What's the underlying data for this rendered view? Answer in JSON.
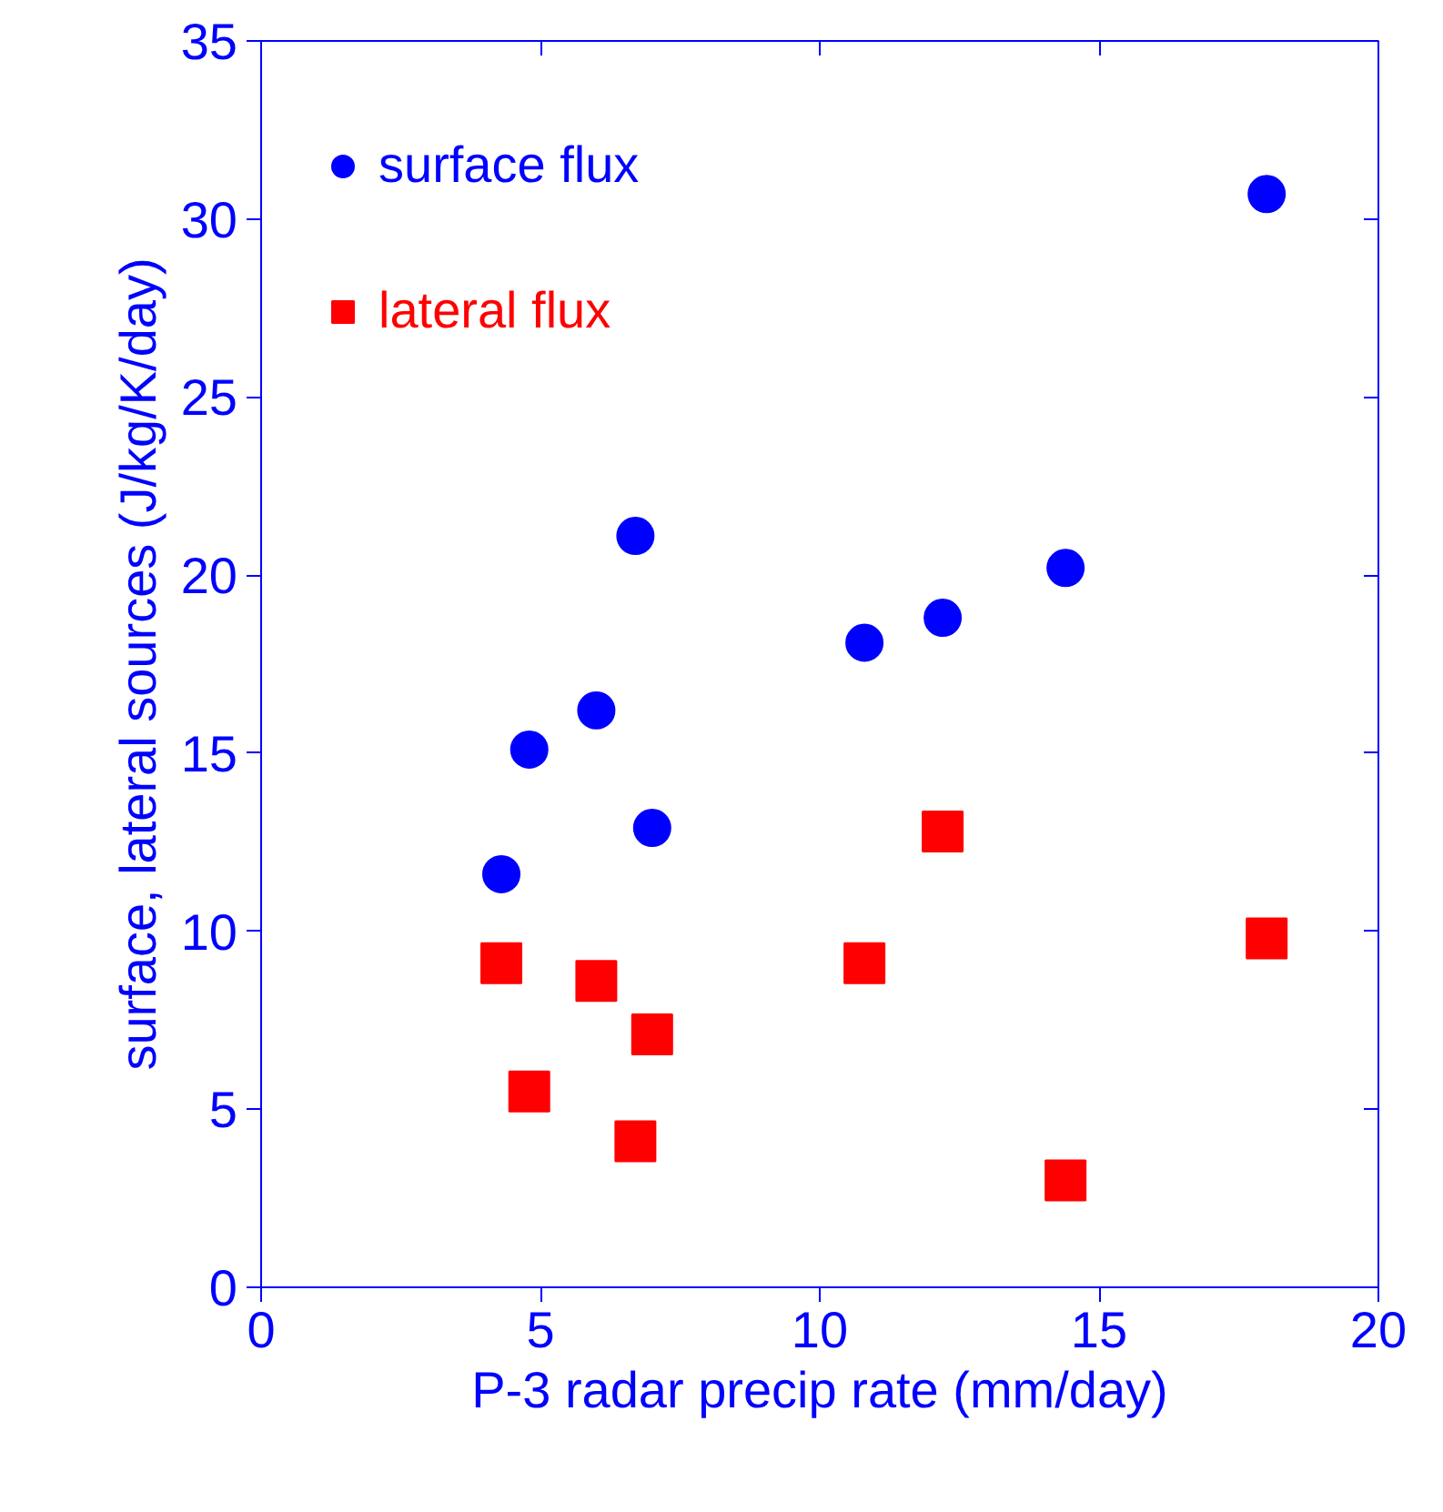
{
  "chart_data": {
    "type": "scatter",
    "xlabel": "P-3 radar precip rate (mm/day)",
    "ylabel": "surface, lateral sources (J/kg/K/day)",
    "xlim": [
      0,
      20
    ],
    "xticks": [
      0,
      5,
      10,
      15,
      20
    ],
    "ylim": [
      0,
      35
    ],
    "yticks": [
      0,
      5,
      10,
      15,
      20,
      25,
      30,
      35
    ],
    "grid": false,
    "legend": "top left",
    "x": [
      4.3,
      4.8,
      6.0,
      6.7,
      7.0,
      10.8,
      12.2,
      14.4,
      18.0
    ],
    "series": [
      {
        "name": "surface flux",
        "color": "#0000ff",
        "marker": "circle",
        "values": [
          11.6,
          15.1,
          16.2,
          21.1,
          12.9,
          18.1,
          18.8,
          20.2,
          30.7
        ]
      },
      {
        "name": "lateral flux",
        "color": "#ff0000",
        "marker": "square",
        "values": [
          9.1,
          5.5,
          8.6,
          4.1,
          7.1,
          9.1,
          12.8,
          3.0,
          9.8
        ]
      }
    ]
  }
}
